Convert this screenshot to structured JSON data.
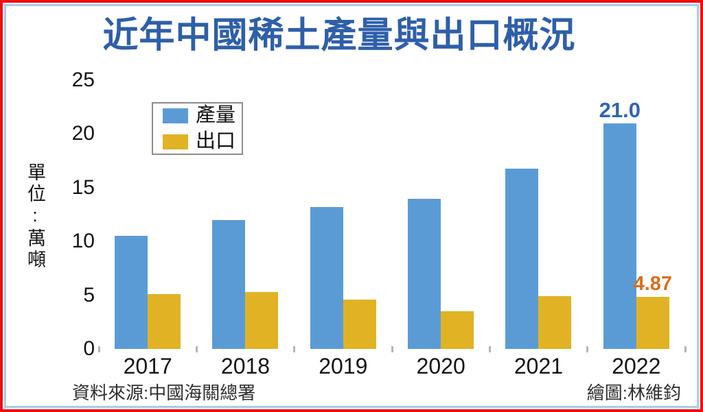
{
  "title": "近年中國稀土產量與出口概況",
  "colors": {
    "production_bar": "#5b9bd5",
    "export_bar": "#e1b324",
    "title_blue": "#2e5fa9",
    "annotation_blue": "#2f66ae",
    "annotation_orange": "#d96f1e",
    "outer_border_red": "#ee0e12",
    "inner_border_blue": "#a9cfe9"
  },
  "legend": {
    "items": [
      {
        "label": "產量",
        "color": "#5b9bd5"
      },
      {
        "label": "出口",
        "color": "#e1b324"
      }
    ]
  },
  "y_axis": {
    "unit_label": "單位:萬噸",
    "ticks": [
      25,
      20,
      15,
      10,
      5,
      0
    ]
  },
  "footer": {
    "source": "資料來源:中國海關總署",
    "credit": "繪圖:林維鈞"
  },
  "chart_data": {
    "type": "bar",
    "title": "近年中國稀土產量與出口概況",
    "categories": [
      "2017",
      "2018",
      "2019",
      "2020",
      "2021",
      "2022"
    ],
    "series": [
      {
        "name": "產量",
        "color": "#5b9bd5",
        "values": [
          10.5,
          12.0,
          13.2,
          14.0,
          16.8,
          21.0
        ],
        "labels": [
          "",
          "",
          "",
          "",
          "",
          "21.0"
        ],
        "label_color": "#2f66ae",
        "label_class": "v-prod"
      },
      {
        "name": "出口",
        "color": "#e1b324",
        "values": [
          5.1,
          5.3,
          4.6,
          3.54,
          4.89,
          4.87
        ],
        "labels": [
          "",
          "",
          "",
          "",
          "",
          "4.87"
        ],
        "label_color": "#d96f1e",
        "label_class": "v-exp"
      }
    ],
    "ylabel": "單位:萬噸",
    "ylim": [
      0,
      25
    ],
    "grid": false,
    "legend_position": "upper-left",
    "annotations": [
      {
        "text": "21.0",
        "series": "產量",
        "category": "2022",
        "color": "#2f66ae"
      },
      {
        "text": "4.87",
        "series": "出口",
        "category": "2022",
        "color": "#d96f1e"
      }
    ]
  }
}
